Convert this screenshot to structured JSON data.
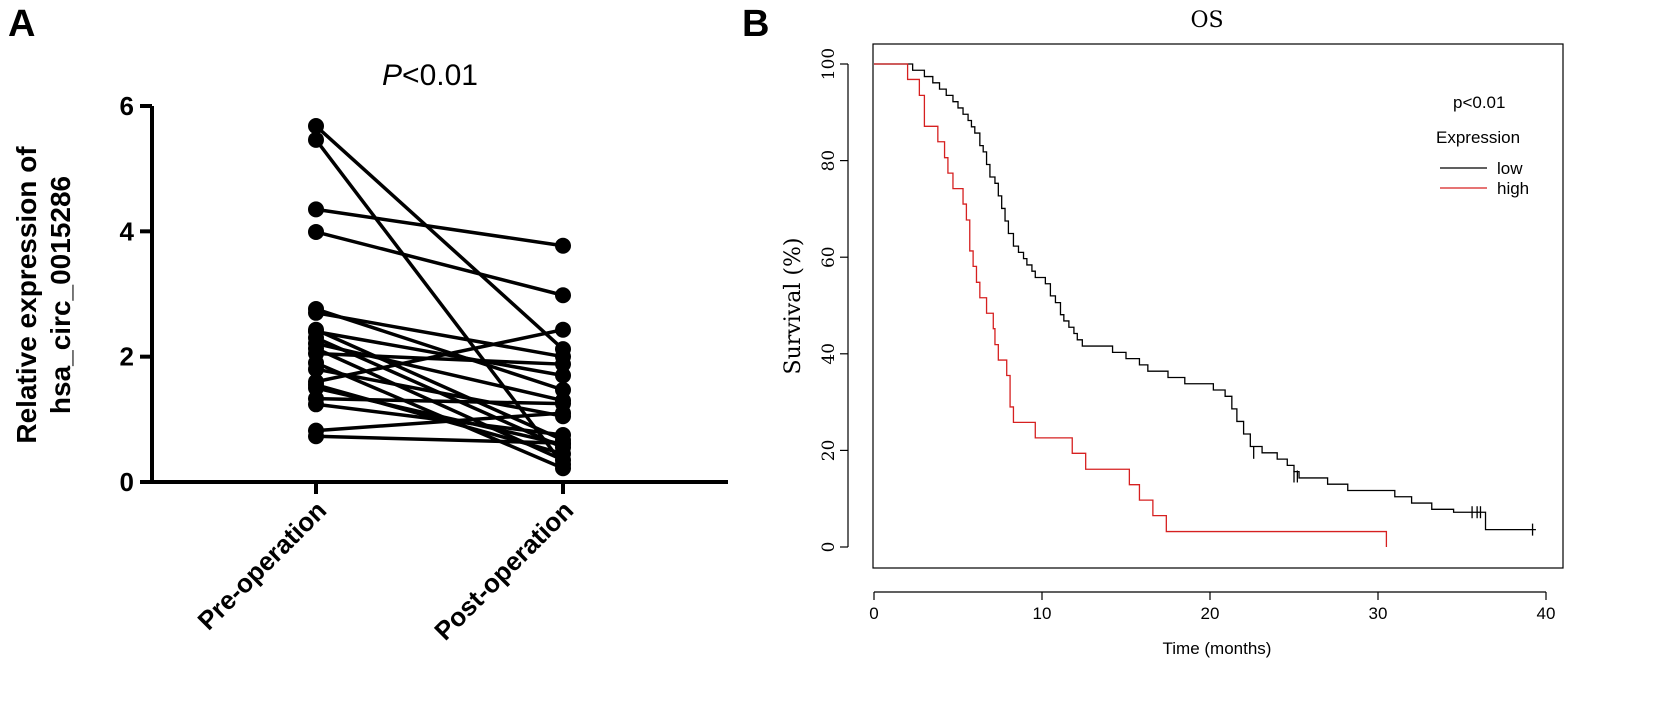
{
  "panels": {
    "a": "A",
    "b": "B"
  },
  "chart_data": [
    {
      "type": "paired-scatter",
      "title_p": "P",
      "title_rest": "<0.01",
      "ylabel_line1": "Relative expression of",
      "ylabel_line2": "hsa_circ_0015286",
      "categories": [
        "Pre-operation",
        "Post-operation"
      ],
      "ylim": [
        0,
        6
      ],
      "yticks": [
        0,
        2,
        4,
        6
      ],
      "pairs": [
        [
          5.68,
          2.12
        ],
        [
          5.46,
          0.28
        ],
        [
          4.35,
          3.77
        ],
        [
          3.99,
          2.98
        ],
        [
          2.76,
          1.47
        ],
        [
          2.7,
          2.0
        ],
        [
          2.43,
          0.67
        ],
        [
          2.4,
          1.7
        ],
        [
          2.3,
          0.55
        ],
        [
          2.21,
          1.3
        ],
        [
          2.13,
          0.35
        ],
        [
          2.05,
          1.88
        ],
        [
          1.9,
          0.22
        ],
        [
          1.8,
          1.05
        ],
        [
          1.6,
          2.43
        ],
        [
          1.55,
          0.45
        ],
        [
          1.5,
          0.6
        ],
        [
          1.33,
          1.25
        ],
        [
          1.24,
          0.75
        ],
        [
          0.82,
          1.1
        ],
        [
          0.73,
          0.62
        ]
      ]
    },
    {
      "type": "line",
      "subtype": "kaplan-meier",
      "title": "OS",
      "xlabel": "Time (months)",
      "ylabel": "Survival (%)",
      "xlim": [
        0,
        40
      ],
      "ylim": [
        0,
        100
      ],
      "xticks": [
        0,
        10,
        20,
        30,
        40
      ],
      "yticks": [
        0,
        20,
        40,
        60,
        80,
        100
      ],
      "p_text": "p<0.01",
      "legend_title": "Expression",
      "series": [
        {
          "name": "low",
          "color": "#000000",
          "steps": [
            [
              0,
              100
            ],
            [
              1.5,
              100
            ],
            [
              2.3,
              98.7
            ],
            [
              3.0,
              97.4
            ],
            [
              3.5,
              96.1
            ],
            [
              3.9,
              94.8
            ],
            [
              4.3,
              93.5
            ],
            [
              4.7,
              92.2
            ],
            [
              5.0,
              90.9
            ],
            [
              5.3,
              89.6
            ],
            [
              5.6,
              88.3
            ],
            [
              5.8,
              87.0
            ],
            [
              6.0,
              85.7
            ],
            [
              6.3,
              83.1
            ],
            [
              6.5,
              81.8
            ],
            [
              6.7,
              79.2
            ],
            [
              6.9,
              76.6
            ],
            [
              7.2,
              75.3
            ],
            [
              7.4,
              72.7
            ],
            [
              7.6,
              70.1
            ],
            [
              7.8,
              67.5
            ],
            [
              8.0,
              64.9
            ],
            [
              8.3,
              62.3
            ],
            [
              8.6,
              61.0
            ],
            [
              8.9,
              59.7
            ],
            [
              9.1,
              58.4
            ],
            [
              9.4,
              57.1
            ],
            [
              9.6,
              55.8
            ],
            [
              10.2,
              54.5
            ],
            [
              10.5,
              52.0
            ],
            [
              10.8,
              50.6
            ],
            [
              11.1,
              48.1
            ],
            [
              11.3,
              46.8
            ],
            [
              11.6,
              45.5
            ],
            [
              11.9,
              44.2
            ],
            [
              12.1,
              42.9
            ],
            [
              12.4,
              41.6
            ],
            [
              14.2,
              40.3
            ],
            [
              15.0,
              39.0
            ],
            [
              15.8,
              37.7
            ],
            [
              16.3,
              36.4
            ],
            [
              17.5,
              35.1
            ],
            [
              18.5,
              33.8
            ],
            [
              20.2,
              32.5
            ],
            [
              20.9,
              31.2
            ],
            [
              21.3,
              28.6
            ],
            [
              21.6,
              26.0
            ],
            [
              22.0,
              23.4
            ],
            [
              22.4,
              20.8
            ],
            [
              23.1,
              19.5
            ],
            [
              24.0,
              18.2
            ],
            [
              24.6,
              16.9
            ],
            [
              25.0,
              15.6
            ],
            [
              25.3,
              14.3
            ],
            [
              27.0,
              13.0
            ],
            [
              28.2,
              11.7
            ],
            [
              31.0,
              10.4
            ],
            [
              32.0,
              9.1
            ],
            [
              33.2,
              7.8
            ],
            [
              34.5,
              7.2
            ],
            [
              36.4,
              3.6
            ],
            [
              39.4,
              3.6
            ]
          ],
          "censors": [
            [
              22.6,
              19.5
            ],
            [
              25.0,
              14.6
            ],
            [
              25.2,
              14.6
            ],
            [
              35.6,
              7.2
            ],
            [
              35.9,
              7.2
            ],
            [
              36.1,
              7.2
            ],
            [
              39.2,
              3.6
            ]
          ]
        },
        {
          "name": "high",
          "color": "#d62020",
          "steps": [
            [
              0,
              100
            ],
            [
              1.8,
              100
            ],
            [
              2.0,
              96.8
            ],
            [
              2.7,
              93.5
            ],
            [
              3.0,
              87.1
            ],
            [
              3.5,
              87.1
            ],
            [
              3.8,
              83.9
            ],
            [
              4.2,
              80.6
            ],
            [
              4.4,
              77.4
            ],
            [
              4.7,
              74.2
            ],
            [
              5.3,
              71.0
            ],
            [
              5.5,
              67.7
            ],
            [
              5.7,
              61.3
            ],
            [
              5.9,
              58.1
            ],
            [
              6.1,
              54.8
            ],
            [
              6.3,
              51.6
            ],
            [
              6.7,
              48.4
            ],
            [
              7.1,
              45.2
            ],
            [
              7.2,
              41.9
            ],
            [
              7.4,
              38.7
            ],
            [
              7.9,
              35.5
            ],
            [
              8.1,
              29.0
            ],
            [
              8.3,
              25.8
            ],
            [
              9.6,
              22.6
            ],
            [
              11.8,
              19.4
            ],
            [
              12.6,
              16.1
            ],
            [
              15.2,
              12.9
            ],
            [
              15.8,
              9.7
            ],
            [
              16.6,
              6.5
            ],
            [
              17.4,
              3.2
            ],
            [
              30.5,
              3.2
            ],
            [
              30.5,
              0
            ]
          ],
          "censors": []
        }
      ]
    }
  ]
}
